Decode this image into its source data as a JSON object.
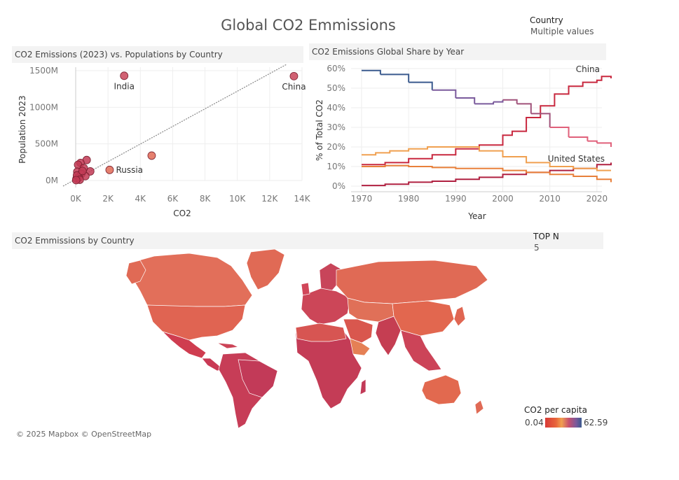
{
  "dashboard": {
    "title": "Global CO2 Emmissions",
    "country_filter": {
      "label": "Country",
      "value": "Multiple values"
    },
    "topn_filter": {
      "label": "TOP N",
      "value": "5"
    }
  },
  "scatter_panel": {
    "title": "CO2 Emissions (2023) vs. Populations by Country"
  },
  "line_panel": {
    "title": "CO2 Emissions Global Share by Year"
  },
  "map_panel": {
    "title": "CO2 Emmissions by Country",
    "attribution": "© 2025 Mapbox © OpenStreetMap",
    "legend": {
      "title": "CO2 per capita",
      "min": "0.04",
      "max": "62.59"
    }
  },
  "colors": {
    "red": "#c0283f",
    "orange": "#e8803a",
    "light_orange": "#f0a050",
    "purple": "#7a5a9c",
    "navy": "#3a5a8e",
    "pink": "#e0607a"
  },
  "chart_data": [
    {
      "type": "scatter",
      "title": "CO2 Emissions (2023) vs. Populations by Country",
      "xlabel": "CO2",
      "ylabel": "Population 2023",
      "xlim": [
        0,
        14000
      ],
      "ylim": [
        0,
        1500
      ],
      "x_ticks": [
        "0K",
        "2K",
        "4K",
        "6K",
        "8K",
        "10K",
        "12K",
        "14K"
      ],
      "y_ticks": [
        "0M",
        "500M",
        "1000M",
        "1500M"
      ],
      "trend_line": true,
      "points": [
        {
          "label": "India",
          "x": 3000,
          "y": 1430
        },
        {
          "label": "China",
          "x": 13500,
          "y": 1425
        },
        {
          "label": "Russia",
          "x": 2100,
          "y": 145
        },
        {
          "label": "",
          "x": 4700,
          "y": 340
        },
        {
          "label": "",
          "x": 680,
          "y": 280
        },
        {
          "label": "",
          "x": 900,
          "y": 125
        },
        {
          "label": "",
          "x": 300,
          "y": 240
        },
        {
          "label": "",
          "x": 150,
          "y": 215
        },
        {
          "label": "",
          "x": 100,
          "y": 120
        },
        {
          "label": "",
          "x": 500,
          "y": 170
        },
        {
          "label": "",
          "x": 350,
          "y": 90
        },
        {
          "label": "",
          "x": 600,
          "y": 60
        },
        {
          "label": "",
          "x": 200,
          "y": 40
        },
        {
          "label": "",
          "x": 50,
          "y": 25
        },
        {
          "label": "",
          "x": 80,
          "y": 70
        },
        {
          "label": "",
          "x": 420,
          "y": 130
        },
        {
          "label": "",
          "x": 250,
          "y": 10
        },
        {
          "label": "",
          "x": 30,
          "y": 5
        }
      ]
    },
    {
      "type": "line",
      "title": "CO2 Emissions Global Share by Year",
      "xlabel": "Year",
      "ylabel": "% of Total CO2",
      "xlim": [
        1970,
        2023
      ],
      "ylim": [
        0,
        60
      ],
      "x_ticks": [
        1970,
        1980,
        1990,
        2000,
        2010,
        2020
      ],
      "y_ticks": [
        "0%",
        "10%",
        "20%",
        "30%",
        "40%",
        "50%",
        "60%"
      ],
      "series": [
        {
          "name": "China",
          "x": [
            1970,
            1975,
            1980,
            1985,
            1990,
            1995,
            2000,
            2002,
            2005,
            2008,
            2011,
            2014,
            2017,
            2020,
            2021,
            2023
          ],
          "y": [
            11,
            12,
            14,
            16,
            19,
            21,
            26,
            28,
            35,
            41,
            47,
            51,
            53,
            54,
            56,
            55
          ]
        },
        {
          "name": "",
          "x": [
            1970,
            1974,
            1980,
            1985,
            1990,
            1994,
            1998,
            2000,
            2003,
            2006,
            2010,
            2014,
            2018,
            2020,
            2023
          ],
          "y": [
            59,
            57,
            53,
            49,
            45,
            42,
            43,
            44,
            42,
            37,
            30,
            25,
            23,
            22,
            20
          ]
        },
        {
          "name": "United States",
          "x": [
            1970,
            1975,
            1980,
            1985,
            1990,
            1995,
            2000,
            2005,
            2010,
            2015,
            2020,
            2023
          ],
          "y": [
            0.3,
            1,
            2,
            2.5,
            3.5,
            4.5,
            6,
            7,
            8,
            9,
            11,
            12
          ]
        },
        {
          "name": "",
          "x": [
            1970,
            1973,
            1976,
            1980,
            1984,
            1990,
            1995,
            2000,
            2005,
            2010,
            2015,
            2020,
            2023
          ],
          "y": [
            16,
            17,
            18,
            19,
            20,
            20,
            18,
            15,
            12,
            10,
            9,
            8,
            8
          ]
        },
        {
          "name": "",
          "x": [
            1970,
            1975,
            1980,
            1985,
            1990,
            1995,
            2000,
            2005,
            2010,
            2015,
            2020,
            2023
          ],
          "y": [
            10,
            10.5,
            10,
            9.5,
            9,
            9,
            8,
            7,
            6,
            5,
            3.5,
            2
          ]
        }
      ]
    }
  ]
}
